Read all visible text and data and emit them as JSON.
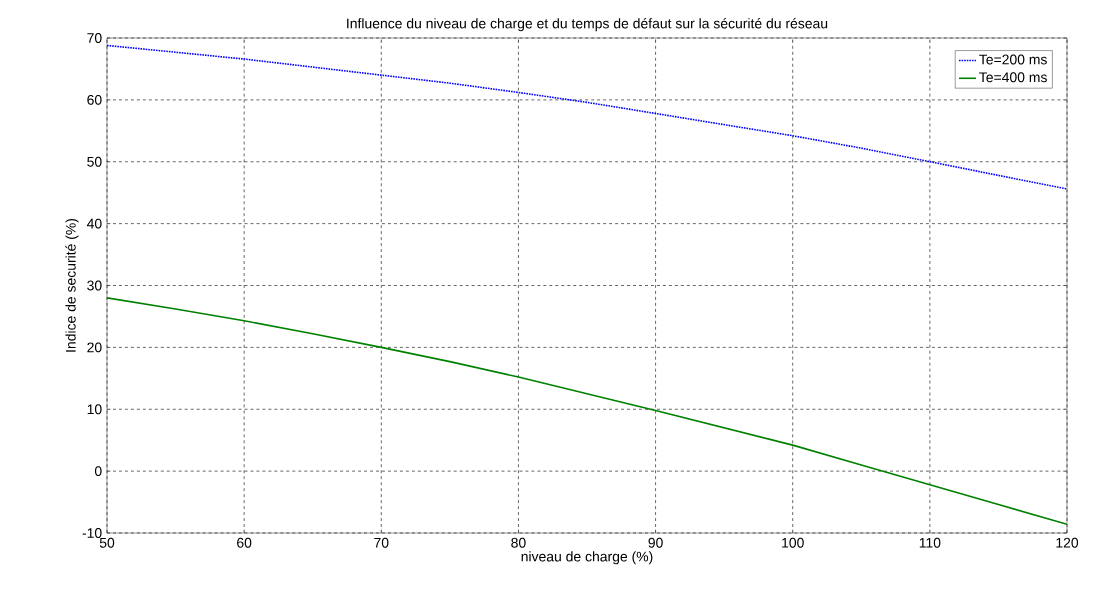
{
  "chart_data": {
    "type": "line",
    "title": "Influence du niveau de charge et du temps de défaut sur la sécurité du réseau",
    "xlabel": "niveau de charge (%)",
    "ylabel": "Indice de securité (%)",
    "x": [
      50,
      55,
      60,
      65,
      70,
      75,
      80,
      85,
      90,
      95,
      100,
      105,
      110,
      115,
      120
    ],
    "series": [
      {
        "name": "Te=200 ms",
        "color": "#0000ff",
        "line_style": "dotted",
        "values": [
          68.8,
          67.7,
          66.6,
          65.3,
          64.0,
          62.7,
          61.2,
          59.6,
          57.8,
          56.0,
          54.2,
          52.2,
          50.0,
          47.8,
          45.6
        ]
      },
      {
        "name": "Te=400 ms",
        "color": "#008000",
        "line_style": "solid",
        "values": [
          28,
          26.2,
          24.3,
          22.2,
          20,
          17.7,
          15.2,
          12.5,
          9.8,
          7.0,
          4.2,
          1.0,
          -2.2,
          -5.4,
          -8.6
        ]
      }
    ],
    "xlim": [
      50,
      120
    ],
    "ylim": [
      -10,
      70
    ],
    "xticks": [
      50,
      60,
      70,
      80,
      90,
      100,
      110,
      120
    ],
    "yticks": [
      -10,
      0,
      10,
      20,
      30,
      40,
      50,
      60,
      70
    ],
    "grid": true,
    "legend": "top right",
    "marker": "none"
  }
}
